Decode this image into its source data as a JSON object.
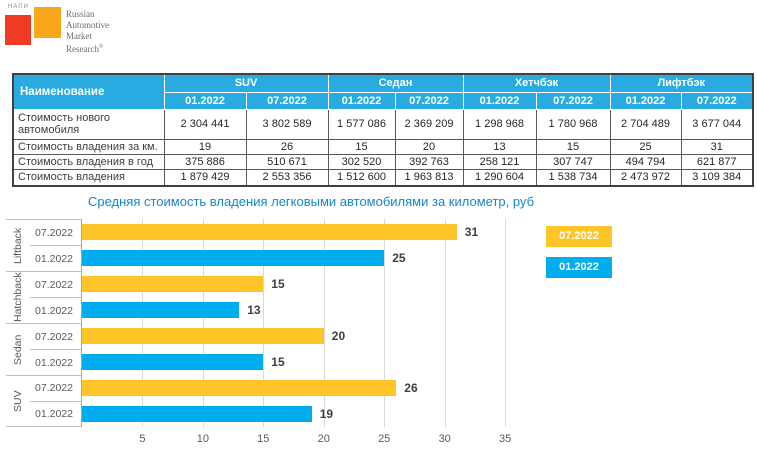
{
  "logo": {
    "napi": "НАПИ",
    "line1": "Russian",
    "line2": "Automotive",
    "line3": "Market",
    "line4": "Research",
    "registered": "®"
  },
  "colors": {
    "header-bg": "#29ABE2",
    "bar-yellow": "#FFC428",
    "bar-blue": "#00AEEF",
    "title-blue": "#1088CE",
    "logo-red": "#EF3B24",
    "logo-orange": "#F9A61B",
    "logo-text": "#6D6E71",
    "grid": "#D9D9D9",
    "axis-text": "#595959",
    "value-text": "#404040"
  },
  "table": {
    "name_header": "Наименование",
    "groups": [
      "SUV",
      "Седан",
      "Хетчбэк",
      "Лифтбэк"
    ],
    "periods": [
      "01.2022",
      "07.2022"
    ],
    "rows": [
      {
        "label": "Стоимость нового автомобиля",
        "values": [
          "2 304 441",
          "3 802 589",
          "1 577 086",
          "2 369 209",
          "1 298 968",
          "1 780 968",
          "2 704 489",
          "3 677 044"
        ]
      },
      {
        "label": "Стоимость владения за км.",
        "values": [
          "19",
          "26",
          "15",
          "20",
          "13",
          "15",
          "25",
          "31"
        ]
      },
      {
        "label": "Стоимость владения в год",
        "values": [
          "375 886",
          "510 671",
          "302 520",
          "392 763",
          "258 121",
          "307 747",
          "494 794",
          "621 877"
        ]
      },
      {
        "label": "Стоимость владения",
        "values": [
          "1 879 429",
          "2 553 356",
          "1 512 600",
          "1 963 813",
          "1 290 604",
          "1 538 734",
          "2 473 972",
          "3 109 384"
        ]
      }
    ]
  },
  "chart_data": {
    "type": "bar",
    "orientation": "horizontal",
    "title": "Средняя стоимость владения легковыми автомобилями за километр, руб",
    "xlabel": "",
    "ylabel": "",
    "xlim": [
      0,
      38.3
    ],
    "x_ticks": [
      5,
      10,
      15,
      20,
      25,
      30,
      35
    ],
    "grid": true,
    "legend_position": "right",
    "groups": [
      {
        "name": "Liftback",
        "bars": [
          {
            "series": "07.2022",
            "value": 31,
            "color": "#FFC428"
          },
          {
            "series": "01.2022",
            "value": 25,
            "color": "#00AEEF"
          }
        ]
      },
      {
        "name": "Hatchback",
        "bars": [
          {
            "series": "07.2022",
            "value": 15,
            "color": "#FFC428"
          },
          {
            "series": "01.2022",
            "value": 13,
            "color": "#00AEEF"
          }
        ]
      },
      {
        "name": "Sedan",
        "bars": [
          {
            "series": "07.2022",
            "value": 20,
            "color": "#FFC428"
          },
          {
            "series": "01.2022",
            "value": 15,
            "color": "#00AEEF"
          }
        ]
      },
      {
        "name": "SUV",
        "bars": [
          {
            "series": "07.2022",
            "value": 26,
            "color": "#FFC428"
          },
          {
            "series": "01.2022",
            "value": 19,
            "color": "#00AEEF"
          }
        ]
      }
    ],
    "legend": [
      {
        "label": "07.2022",
        "color": "#FFC428"
      },
      {
        "label": "01.2022",
        "color": "#00AEEF"
      }
    ]
  }
}
